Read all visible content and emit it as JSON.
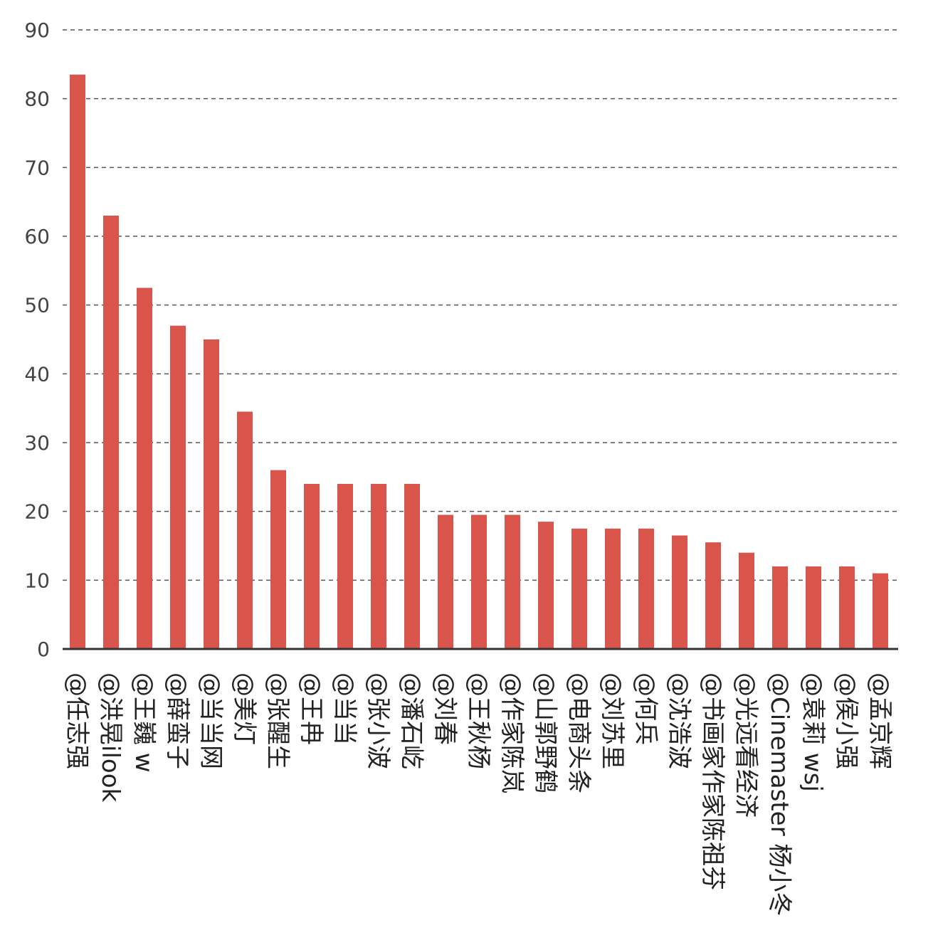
{
  "chart_data": {
    "type": "bar",
    "title": "",
    "xlabel": "",
    "ylabel": "",
    "ylim": [
      0,
      90
    ],
    "yticks": [
      0,
      10,
      20,
      30,
      40,
      50,
      60,
      70,
      80,
      90
    ],
    "grid": true,
    "bar_color": "#d9544a",
    "categories": [
      "@任志强",
      "@洪晃ilook",
      "@王巍 w",
      "@薛蛮子",
      "@当当网",
      "@美灯",
      "@张醒生",
      "@王冉",
      "@当当",
      "@张小波",
      "@潘石屹",
      "@刘春",
      "@王秋杨",
      "@作家陈岚",
      "@山郭野鹤",
      "@电商头条",
      "@刘苏里",
      "@何兵",
      "@沈浩波",
      "@书画家作家陈祖芬",
      "@光远看经济",
      "@Cinemaster 杨小冬",
      "@袁莉 wsj",
      "@侯小强",
      "@孟京辉"
    ],
    "values": [
      83.5,
      63,
      52.5,
      47,
      45,
      34.5,
      26,
      24,
      24,
      24,
      24,
      19.5,
      19.5,
      19.5,
      18.5,
      17.5,
      17.5,
      17.5,
      16.5,
      15.5,
      14,
      12,
      12,
      12,
      11
    ]
  }
}
